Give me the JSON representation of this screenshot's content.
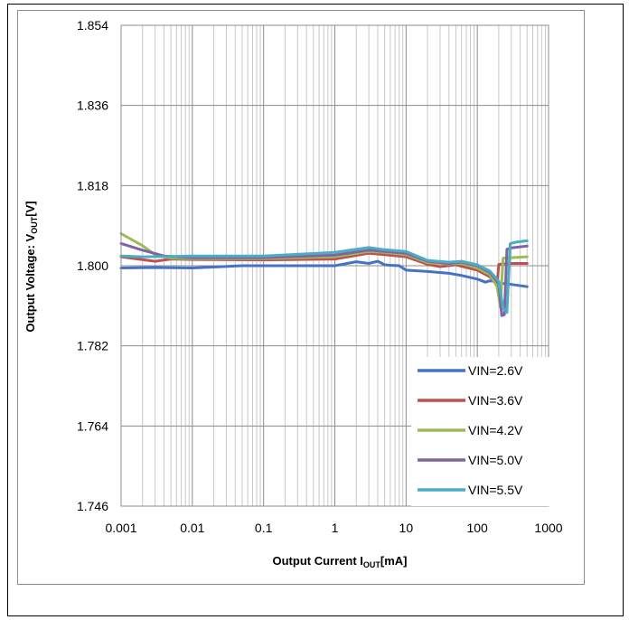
{
  "chart_data": {
    "type": "line",
    "xscale": "log",
    "xlim": [
      0.001,
      1000
    ],
    "ylim": [
      1.746,
      1.854
    ],
    "xticks": [
      "0.001",
      "0.01",
      "0.1",
      "1",
      "10",
      "100",
      "1000"
    ],
    "yticks": [
      "1.854",
      "1.836",
      "1.818",
      "1.800",
      "1.782",
      "1.764",
      "1.746"
    ],
    "xlabel": {
      "main": "Output Current I",
      "sub": "OUT",
      "unit": "[mA]"
    },
    "ylabel": {
      "main": "Output Voltage: V",
      "sub": "OUT",
      "unit": "[V]"
    },
    "grid": true,
    "legend_position": "bottom-right",
    "series": [
      {
        "name": "VIN=2.6V",
        "color": "#4472c4",
        "points": [
          [
            0.001,
            1.7995
          ],
          [
            0.003,
            1.7996
          ],
          [
            0.01,
            1.7995
          ],
          [
            0.05,
            1.8
          ],
          [
            0.3,
            1.8
          ],
          [
            1,
            1.8
          ],
          [
            2,
            1.8009
          ],
          [
            3,
            1.8005
          ],
          [
            4,
            1.801
          ],
          [
            5,
            1.8002
          ],
          [
            6,
            1.8001
          ],
          [
            8,
            1.8
          ],
          [
            10,
            1.799
          ],
          [
            20,
            1.7987
          ],
          [
            40,
            1.7983
          ],
          [
            60,
            1.7978
          ],
          [
            100,
            1.797
          ],
          [
            130,
            1.7963
          ],
          [
            150,
            1.7966
          ],
          [
            180,
            1.7965
          ],
          [
            200,
            1.796
          ],
          [
            250,
            1.796
          ],
          [
            300,
            1.7958
          ],
          [
            500,
            1.7953
          ]
        ]
      },
      {
        "name": "VIN=3.6V",
        "color": "#c0504d",
        "points": [
          [
            0.001,
            1.802
          ],
          [
            0.003,
            1.801
          ],
          [
            0.005,
            1.8015
          ],
          [
            0.01,
            1.8014
          ],
          [
            0.1,
            1.8013
          ],
          [
            1,
            1.8015
          ],
          [
            3,
            1.8028
          ],
          [
            5,
            1.8025
          ],
          [
            10,
            1.802
          ],
          [
            20,
            1.8003
          ],
          [
            30,
            1.7998
          ],
          [
            50,
            1.8002
          ],
          [
            100,
            1.799
          ],
          [
            150,
            1.7975
          ],
          [
            190,
            1.7958
          ],
          [
            200,
            1.8003
          ],
          [
            230,
            1.8004
          ],
          [
            300,
            1.8005
          ],
          [
            500,
            1.8005
          ]
        ]
      },
      {
        "name": "VIN=4.2V",
        "color": "#9bbb59",
        "points": [
          [
            0.001,
            1.8072
          ],
          [
            0.002,
            1.8045
          ],
          [
            0.003,
            1.8025
          ],
          [
            0.005,
            1.8017
          ],
          [
            0.01,
            1.8016
          ],
          [
            0.1,
            1.8016
          ],
          [
            1,
            1.802
          ],
          [
            3,
            1.8032
          ],
          [
            5,
            1.803
          ],
          [
            10,
            1.8025
          ],
          [
            20,
            1.8007
          ],
          [
            40,
            1.8004
          ],
          [
            60,
            1.8005
          ],
          [
            100,
            1.7995
          ],
          [
            150,
            1.798
          ],
          [
            190,
            1.7953
          ],
          [
            210,
            1.7907
          ],
          [
            230,
            1.8017
          ],
          [
            300,
            1.8018
          ],
          [
            500,
            1.802
          ]
        ]
      },
      {
        "name": "VIN=5.0V",
        "color": "#8064a2",
        "points": [
          [
            0.001,
            1.805
          ],
          [
            0.002,
            1.8035
          ],
          [
            0.004,
            1.8022
          ],
          [
            0.01,
            1.8018
          ],
          [
            0.1,
            1.8018
          ],
          [
            1,
            1.8024
          ],
          [
            3,
            1.8035
          ],
          [
            5,
            1.8032
          ],
          [
            10,
            1.8028
          ],
          [
            20,
            1.801
          ],
          [
            40,
            1.8005
          ],
          [
            60,
            1.8008
          ],
          [
            100,
            1.8
          ],
          [
            150,
            1.7985
          ],
          [
            200,
            1.796
          ],
          [
            220,
            1.7888
          ],
          [
            240,
            1.789
          ],
          [
            260,
            1.8037
          ],
          [
            300,
            1.804
          ],
          [
            500,
            1.8044
          ]
        ]
      },
      {
        "name": "VIN=5.5V",
        "color": "#4bacc6",
        "points": [
          [
            0.001,
            1.8022
          ],
          [
            0.002,
            1.802
          ],
          [
            0.005,
            1.8021
          ],
          [
            0.01,
            1.8022
          ],
          [
            0.1,
            1.8022
          ],
          [
            1,
            1.803
          ],
          [
            3,
            1.8041
          ],
          [
            5,
            1.8036
          ],
          [
            10,
            1.8032
          ],
          [
            20,
            1.8012
          ],
          [
            40,
            1.8008
          ],
          [
            60,
            1.801
          ],
          [
            100,
            1.8002
          ],
          [
            150,
            1.7988
          ],
          [
            200,
            1.7965
          ],
          [
            230,
            1.7905
          ],
          [
            260,
            1.7895
          ],
          [
            290,
            1.805
          ],
          [
            350,
            1.8053
          ],
          [
            500,
            1.8056
          ]
        ]
      }
    ]
  }
}
